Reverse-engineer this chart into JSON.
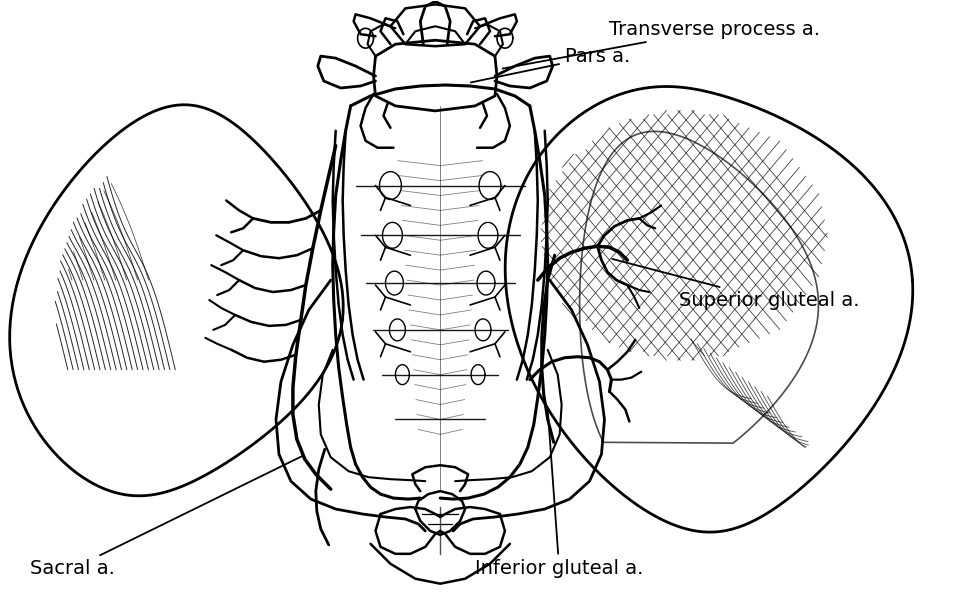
{
  "background_color": "#ffffff",
  "figure_width": 9.75,
  "figure_height": 6.03,
  "dpi": 100,
  "labels": {
    "transverse_process": "Transverse process a.",
    "pars": "Pars a.",
    "superior_gluteal": "Superior gluteal a.",
    "inferior_gluteal": "Inferior gluteal a.",
    "sacral": "Sacral a."
  },
  "line_color": "#000000",
  "text_color": "#000000",
  "font_size": 14
}
